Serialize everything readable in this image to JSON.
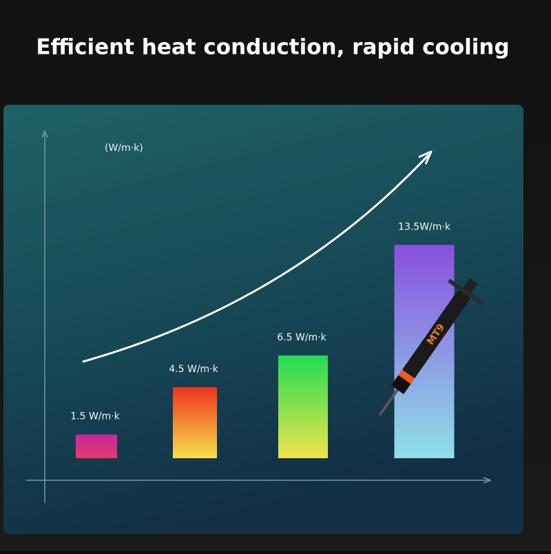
{
  "chart_data": {
    "type": "bar",
    "title": "Efficient heat conduction, rapid cooling",
    "y_label": "(W/m·k)",
    "categories": [
      null,
      null,
      null,
      null
    ],
    "values": [
      1.5,
      4.5,
      6.5,
      13.5
    ],
    "value_labels": [
      "1.5 W/m·k",
      "4.5 W/m·k",
      "6.5 W/m·k",
      "13.5W/m·k"
    ],
    "colors": [
      [
        "#c8269e",
        "#e23a6c"
      ],
      [
        "#f0341e",
        "#f5e04a"
      ],
      [
        "#22dc52",
        "#f0e34c"
      ],
      [
        "#8a4fe0",
        "#8fe0e8"
      ]
    ],
    "ylim": [
      0,
      15
    ]
  }
}
